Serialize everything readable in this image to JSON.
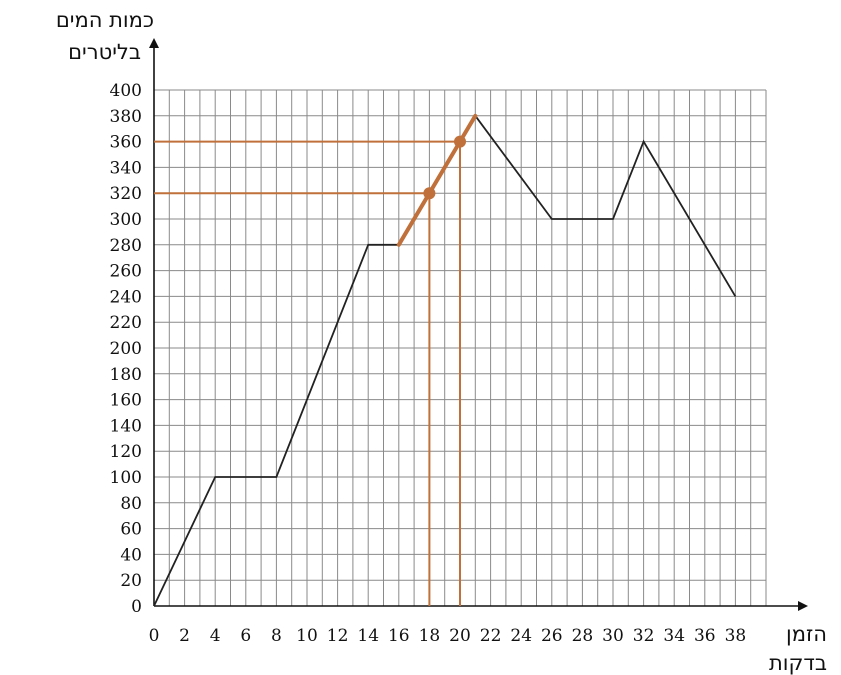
{
  "chart_data": {
    "type": "line",
    "ylabel_lines": [
      "כמות המים",
      "בליטרים"
    ],
    "xlabel_lines": [
      "הזמן",
      "בדקות"
    ],
    "xlim": [
      0,
      40
    ],
    "ylim": [
      0,
      400
    ],
    "x_ticks": [
      0,
      2,
      4,
      6,
      8,
      10,
      12,
      14,
      16,
      18,
      20,
      22,
      24,
      26,
      28,
      30,
      32,
      34,
      36,
      38
    ],
    "y_ticks": [
      0,
      20,
      40,
      60,
      80,
      100,
      120,
      140,
      160,
      180,
      200,
      220,
      240,
      260,
      280,
      300,
      320,
      340,
      360,
      380,
      400
    ],
    "grid": true,
    "series": [
      {
        "color": "#222222",
        "x": [
          0,
          4,
          8,
          14,
          16,
          21,
          26,
          28,
          30,
          32,
          38
        ],
        "y": [
          0,
          100,
          100,
          280,
          280,
          380,
          300,
          300,
          300,
          360,
          240
        ]
      }
    ],
    "highlight": {
      "color": "#c0703a",
      "segment": {
        "x": [
          16,
          21
        ],
        "y": [
          280,
          380
        ]
      },
      "points": [
        {
          "x": 18,
          "y": 320
        },
        {
          "x": 20,
          "y": 360
        }
      ]
    }
  }
}
